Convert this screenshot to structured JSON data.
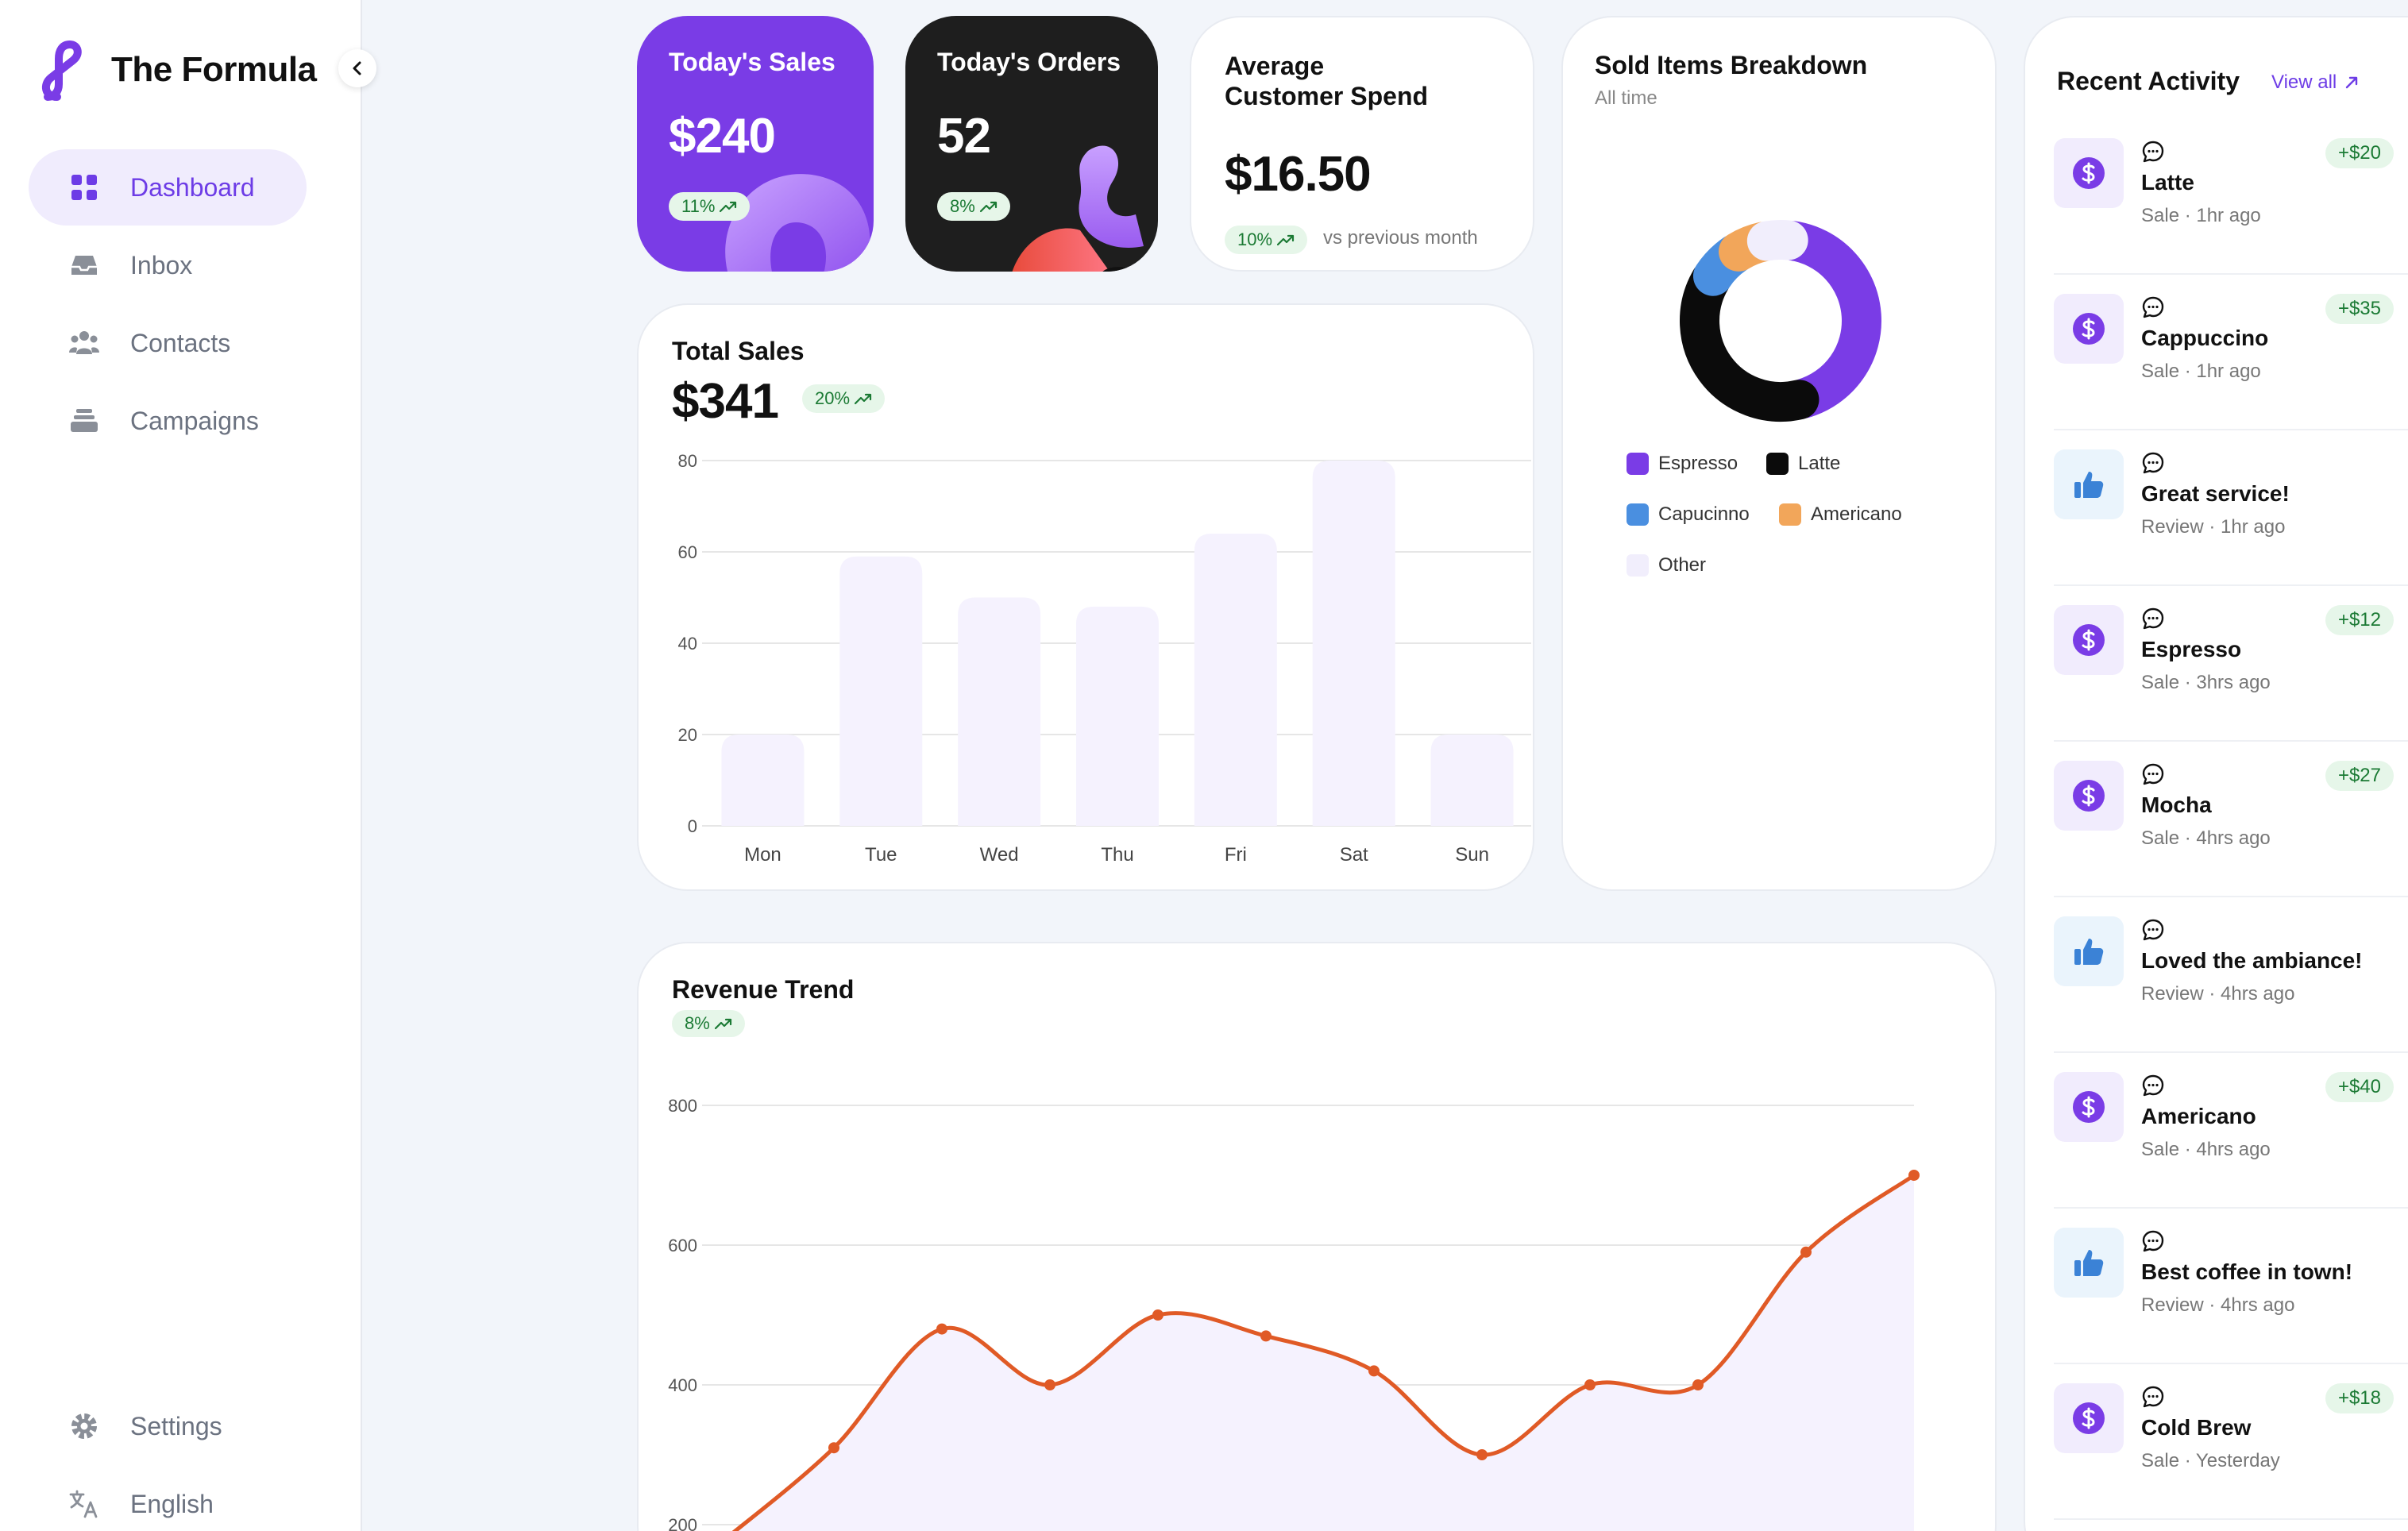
{
  "brand": {
    "name": "The Formula"
  },
  "nav": [
    {
      "label": "Dashboard",
      "icon": "grid-icon",
      "active": true
    },
    {
      "label": "Inbox",
      "icon": "inbox-icon"
    },
    {
      "label": "Contacts",
      "icon": "users-icon"
    },
    {
      "label": "Campaigns",
      "icon": "stack-icon"
    }
  ],
  "nav_bottom": [
    {
      "label": "Settings",
      "icon": "gear-icon"
    },
    {
      "label": "English",
      "icon": "translate-icon"
    }
  ],
  "stats": {
    "today_sales": {
      "title": "Today's Sales",
      "value": "$240",
      "change": "11%"
    },
    "today_orders": {
      "title": "Today's Orders",
      "value": "52",
      "change": "8%"
    },
    "avg_spend": {
      "title_line1": "Average",
      "title_line2": "Customer Spend",
      "value": "$16.50",
      "change": "10%",
      "sub": "vs previous month"
    }
  },
  "total_sales": {
    "title": "Total Sales",
    "value": "$341",
    "change": "20%"
  },
  "sold_items": {
    "title": "Sold Items Breakdown",
    "subtitle": "All time"
  },
  "revenue": {
    "title": "Revenue Trend",
    "change": "8%"
  },
  "activity": {
    "title": "Recent Activity",
    "view_all": "View all",
    "items": [
      {
        "type": "sale",
        "name": "Latte",
        "sub": "Sale · 1hr ago",
        "amount": "+$20"
      },
      {
        "type": "sale",
        "name": "Cappuccino",
        "sub": "Sale · 1hr ago",
        "amount": "+$35"
      },
      {
        "type": "review",
        "name": "Great service!",
        "sub": "Review · 1hr ago",
        "amount": ""
      },
      {
        "type": "sale",
        "name": "Espresso",
        "sub": "Sale · 3hrs ago",
        "amount": "+$12"
      },
      {
        "type": "sale",
        "name": "Mocha",
        "sub": "Sale · 4hrs ago",
        "amount": "+$27"
      },
      {
        "type": "review",
        "name": "Loved the ambiance!",
        "sub": "Review · 4hrs ago",
        "amount": ""
      },
      {
        "type": "sale",
        "name": "Americano",
        "sub": "Sale · 4hrs ago",
        "amount": "+$40"
      },
      {
        "type": "review",
        "name": "Best coffee in town!",
        "sub": "Review · 4hrs ago",
        "amount": ""
      },
      {
        "type": "sale",
        "name": "Cold Brew",
        "sub": "Sale · Yesterday",
        "amount": "+$18"
      }
    ]
  },
  "colors": {
    "accent": "#7a3ce6",
    "positive": "#1b7a34",
    "line": "#e05a26",
    "bar": "#f5f2fe"
  },
  "chart_data": [
    {
      "type": "bar",
      "categories": [
        "Mon",
        "Tue",
        "Wed",
        "Thu",
        "Fri",
        "Sat",
        "Sun"
      ],
      "values": [
        20,
        59,
        50,
        48,
        64,
        80,
        20
      ],
      "ylim": [
        0,
        80
      ],
      "yticks": [
        0,
        20,
        40,
        60,
        80
      ],
      "grid": true
    },
    {
      "type": "pie",
      "donut": true,
      "categories": [
        "Espresso",
        "Latte",
        "Capucinno",
        "Americano",
        "Other"
      ],
      "values": [
        44,
        38,
        7,
        6,
        5
      ],
      "colors": [
        "#7a3ce6",
        "#0b0b0b",
        "#4a8fe0",
        "#f2a65a",
        "#f1eefc"
      ],
      "legend": "bottom"
    },
    {
      "type": "area",
      "x": [
        1,
        2,
        3,
        4,
        5,
        6,
        7,
        8,
        9,
        10,
        11,
        12
      ],
      "values": [
        180,
        310,
        480,
        400,
        500,
        470,
        420,
        300,
        400,
        400,
        590,
        700
      ],
      "ylim": [
        180,
        800
      ],
      "yticks": [
        200,
        400,
        600,
        800
      ],
      "grid": true
    }
  ]
}
